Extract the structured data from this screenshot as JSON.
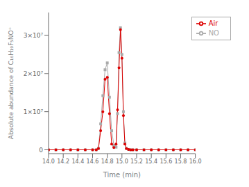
{
  "chart_data": {
    "type": "line",
    "xlabel": "Time (min)",
    "ylabel": "Absolute abundance of C₁₆H₁₉F₅NO⁺",
    "xlim": [
      14.0,
      16.0
    ],
    "ylim": [
      -1000000,
      36000000
    ],
    "xticks": [
      {
        "value": 14.0,
        "label": "14.0"
      },
      14.2,
      14.4,
      14.6,
      14.8,
      {
        "value": 15.0,
        "label": "15.0"
      },
      15.2,
      15.4,
      15.6,
      15.8,
      {
        "value": 16.0,
        "label": "16.0"
      }
    ],
    "yticks": [
      0,
      {
        "value": 10000000,
        "label": "1×10⁷"
      },
      {
        "value": 20000000,
        "label": "2×10⁷"
      },
      {
        "value": 30000000,
        "label": "3×10⁷"
      }
    ],
    "grid": false,
    "legend": "upper right",
    "x": [
      14.0,
      14.1,
      14.2,
      14.3,
      14.4,
      14.5,
      14.6,
      14.65,
      14.68,
      14.71,
      14.74,
      14.77,
      14.8,
      14.83,
      14.86,
      14.89,
      14.92,
      14.94,
      14.96,
      14.98,
      15.0,
      15.02,
      15.04,
      15.06,
      15.09,
      15.12,
      15.15,
      15.2,
      15.3,
      15.4,
      15.5,
      15.6,
      15.7,
      15.8,
      15.9,
      16.0
    ],
    "series": [
      {
        "name": "NO",
        "color": "#aaaaaa",
        "marker": "square",
        "values": [
          0,
          0,
          0,
          0,
          0,
          0,
          0,
          0,
          400000,
          6800000,
          14200000,
          21000000,
          22800000,
          13800000,
          5000000,
          1200000,
          700000,
          9500000,
          25500000,
          32000000,
          25000000,
          10000000,
          1800000,
          400000,
          100000,
          0,
          0,
          0,
          0,
          0,
          0,
          0,
          0,
          0,
          0,
          0
        ]
      },
      {
        "name": "Air",
        "color": "#dd0000",
        "marker": "circle",
        "values": [
          0,
          0,
          0,
          0,
          0,
          0,
          0,
          0,
          300000,
          5000000,
          10000000,
          18500000,
          19000000,
          9500000,
          1500000,
          600000,
          1500000,
          10500000,
          21500000,
          31500000,
          24000000,
          9000000,
          1500000,
          300000,
          100000,
          0,
          0,
          0,
          0,
          0,
          0,
          0,
          0,
          0,
          0,
          0
        ]
      }
    ]
  }
}
